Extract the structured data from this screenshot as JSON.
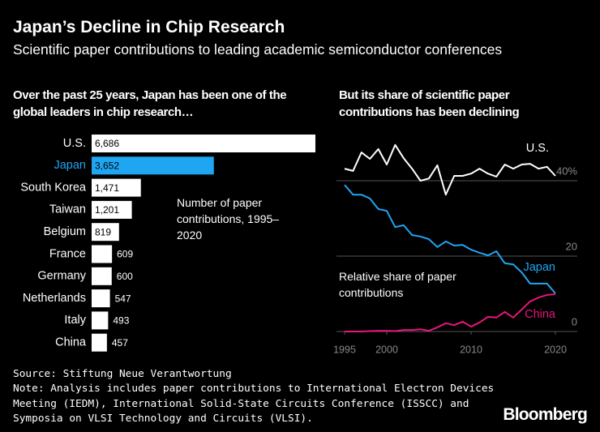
{
  "title": "Japan’s Decline in Chip Research",
  "subtitle": "Scientific paper contributions to leading academic semiconductor conferences",
  "source": "Source: Stiftung Neue Verantwortung",
  "note": "Note: Analysis includes paper contributions to International Electron Devices Meeting (IEDM), International Solid-State Circuits Conference (ISSCC) and Symposia on VLSI Technology and Circuits (VLSI).",
  "brand": "Bloomberg",
  "chart_data": [
    {
      "type": "hbar",
      "title": "Over the past 25 years, Japan has been one of the global leaders in chip research…",
      "annotation": "Number of paper contributions, 1995–2020",
      "categories": [
        "U.S.",
        "Japan",
        "South Korea",
        "Taiwan",
        "Belgium",
        "France",
        "Germany",
        "Netherlands",
        "Italy",
        "China"
      ],
      "values": [
        6686,
        3652,
        1471,
        1201,
        819,
        609,
        600,
        547,
        493,
        457
      ],
      "value_labels": [
        "6,686",
        "3,652",
        "1,471",
        "1,201",
        "819",
        "609",
        "600",
        "547",
        "493",
        "457"
      ],
      "colors": [
        "#ffffff",
        "#1fa6f2",
        "#ffffff",
        "#ffffff",
        "#ffffff",
        "#ffffff",
        "#ffffff",
        "#ffffff",
        "#ffffff",
        "#ffffff"
      ]
    },
    {
      "type": "line",
      "title": "But its share of scientific paper contributions has been declining",
      "annotation": "Relative share of paper contributions",
      "x": [
        1995,
        1996,
        1997,
        1998,
        1999,
        2000,
        2001,
        2002,
        2003,
        2004,
        2005,
        2006,
        2007,
        2008,
        2009,
        2010,
        2011,
        2012,
        2013,
        2014,
        2015,
        2016,
        2017,
        2018,
        2019,
        2020
      ],
      "xlim": [
        1995,
        2020
      ],
      "xticks": [
        1995,
        2000,
        2010,
        2020
      ],
      "ylim": [
        0,
        50
      ],
      "yticks": [
        0,
        20,
        {
          "value": 40,
          "label": "40%"
        }
      ],
      "grid": true,
      "series": [
        {
          "name": "U.S.",
          "color": "#ffffff",
          "values": [
            43.2,
            42.6,
            47.5,
            45.8,
            48.4,
            44.3,
            49.5,
            46.0,
            43.2,
            40.0,
            40.6,
            44.1,
            36.3,
            41.3,
            41.3,
            41.9,
            43.2,
            41.9,
            41.1,
            44.3,
            43.2,
            44.3,
            44.5,
            43.2,
            43.7,
            41.3
          ]
        },
        {
          "name": "Japan",
          "color": "#1fa6f2",
          "values": [
            38.9,
            36.3,
            36.3,
            35.3,
            32.5,
            32.0,
            27.7,
            28.2,
            25.6,
            25.2,
            24.5,
            22.4,
            23.9,
            22.8,
            23.0,
            21.7,
            20.9,
            20.2,
            21.3,
            18.1,
            17.8,
            15.7,
            12.7,
            12.7,
            12.7,
            10.1
          ]
        },
        {
          "name": "China",
          "color": "#e8157a",
          "values": [
            0,
            0,
            0,
            0.1,
            0.2,
            0.2,
            0.1,
            0.4,
            0.4,
            0.6,
            0.2,
            1.1,
            2.2,
            1.7,
            2.6,
            1.3,
            2.4,
            3.9,
            3.7,
            5.2,
            3.7,
            5.8,
            8.0,
            9.0,
            9.7,
            9.9
          ]
        }
      ]
    }
  ]
}
